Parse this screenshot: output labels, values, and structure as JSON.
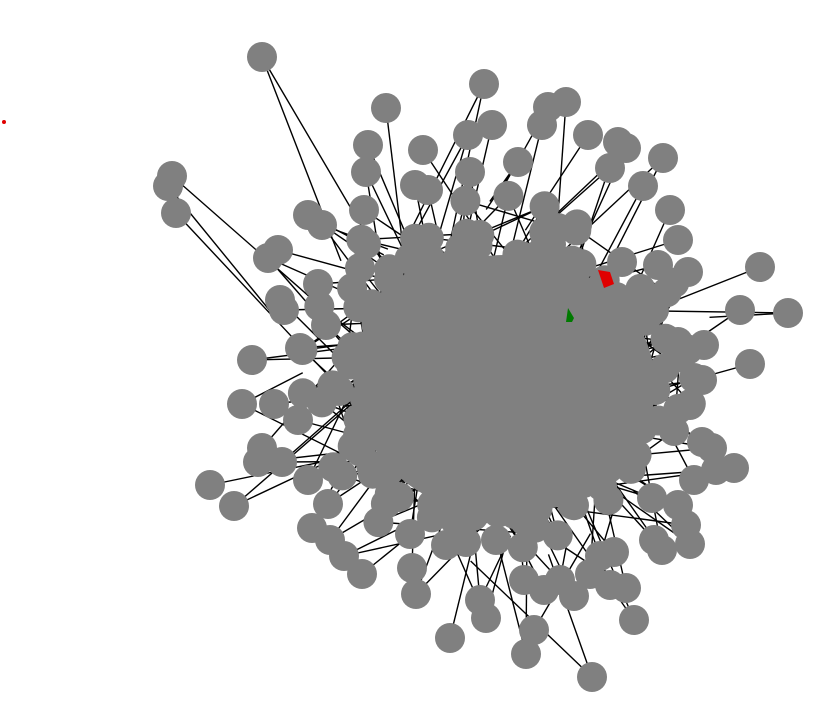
{
  "graph": {
    "node_color": "#808080",
    "edge_color": "#000000",
    "background": "#ffffff",
    "highlight_color": "#e00000",
    "accent_color": "#007a00",
    "node_count_visible": 260,
    "outlier_node": "red-dot-isolated"
  }
}
